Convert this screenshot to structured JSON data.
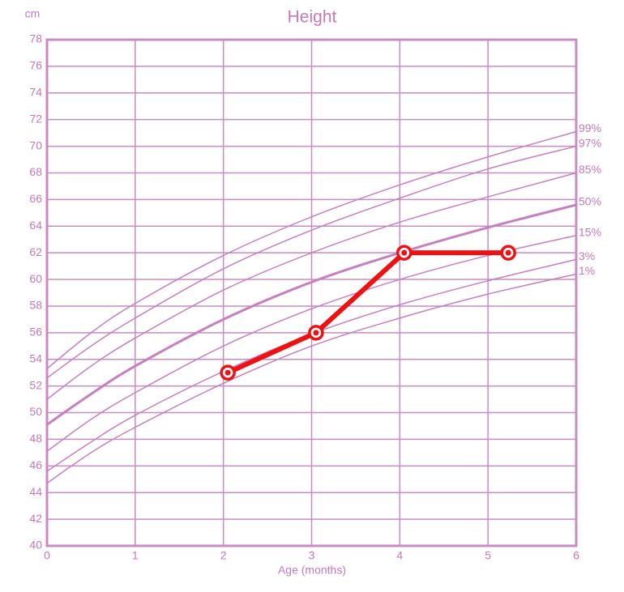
{
  "chart_data": {
    "type": "line",
    "title": "Height",
    "y_unit": "cm",
    "x_label": "Age (months)",
    "xlim": [
      0,
      6
    ],
    "ylim": [
      40,
      78
    ],
    "xticks": [
      0,
      1,
      2,
      3,
      4,
      5,
      6
    ],
    "yticks": [
      40,
      42,
      44,
      46,
      48,
      50,
      52,
      54,
      56,
      58,
      60,
      62,
      64,
      66,
      68,
      70,
      72,
      74,
      76,
      78
    ],
    "grid": true,
    "grid_color": "#c98bc4",
    "text_color": "#c479b8",
    "series": [
      {
        "name": "99%",
        "color": "#c77fc0",
        "line_width": 1.5,
        "x": [
          0,
          0.5,
          1,
          2,
          3,
          4,
          5,
          6
        ],
        "values": [
          53.3,
          56.0,
          58.2,
          61.8,
          64.7,
          67.1,
          69.2,
          71.1
        ]
      },
      {
        "name": "97%",
        "color": "#c77fc0",
        "line_width": 1.5,
        "x": [
          0,
          0.5,
          1,
          2,
          3,
          4,
          5,
          6
        ],
        "values": [
          52.6,
          55.0,
          57.1,
          60.8,
          63.7,
          66.1,
          68.3,
          70.0
        ]
      },
      {
        "name": "85%",
        "color": "#c77fc0",
        "line_width": 1.5,
        "x": [
          0,
          0.5,
          1,
          2,
          3,
          4,
          5,
          6
        ],
        "values": [
          51.0,
          53.5,
          55.6,
          59.2,
          62.0,
          64.3,
          66.2,
          68.0
        ]
      },
      {
        "name": "50%",
        "color": "#c77fc0",
        "line_width": 3,
        "x": [
          0,
          0.5,
          1,
          2,
          3,
          4,
          5,
          6
        ],
        "values": [
          49.1,
          51.4,
          53.5,
          57.0,
          59.8,
          62.0,
          63.9,
          65.6
        ]
      },
      {
        "name": "15%",
        "color": "#c77fc0",
        "line_width": 1.5,
        "x": [
          0,
          0.5,
          1,
          2,
          3,
          4,
          5,
          6
        ],
        "values": [
          47.1,
          49.5,
          51.5,
          55.0,
          57.8,
          60.0,
          61.8,
          63.3
        ]
      },
      {
        "name": "3%",
        "color": "#c77fc0",
        "line_width": 1.5,
        "x": [
          0,
          0.5,
          1,
          2,
          3,
          4,
          5,
          6
        ],
        "values": [
          45.6,
          47.8,
          49.8,
          53.1,
          55.9,
          58.1,
          59.9,
          61.5
        ]
      },
      {
        "name": "1%",
        "color": "#c77fc0",
        "line_width": 1.5,
        "x": [
          0,
          0.5,
          1,
          2,
          3,
          4,
          5,
          6
        ],
        "values": [
          44.7,
          47.0,
          48.9,
          52.2,
          55.0,
          57.1,
          58.9,
          60.4
        ]
      },
      {
        "color": "#ee1111",
        "line_width": 6,
        "markers": true,
        "x": [
          2.05,
          3.05,
          4.05,
          5.23
        ],
        "values": [
          53,
          56,
          62,
          62
        ]
      }
    ]
  }
}
